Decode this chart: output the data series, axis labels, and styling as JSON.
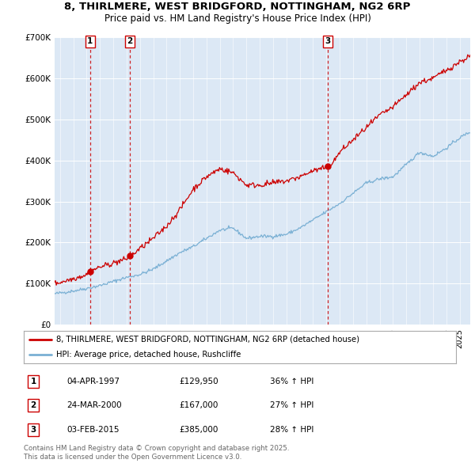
{
  "title1": "8, THIRLMERE, WEST BRIDGFORD, NOTTINGHAM, NG2 6RP",
  "title2": "Price paid vs. HM Land Registry's House Price Index (HPI)",
  "ylim": [
    0,
    700000
  ],
  "yticks": [
    0,
    100000,
    200000,
    300000,
    400000,
    500000,
    600000,
    700000
  ],
  "ytick_labels": [
    "£0",
    "£100K",
    "£200K",
    "£300K",
    "£400K",
    "£500K",
    "£600K",
    "£700K"
  ],
  "xlim_start": 1994.6,
  "xlim_end": 2025.8,
  "sales": [
    {
      "label": "1",
      "date": 1997.27,
      "price": 129950
    },
    {
      "label": "2",
      "date": 2000.23,
      "price": 167000
    },
    {
      "label": "3",
      "date": 2015.09,
      "price": 385000
    }
  ],
  "legend_line1": "8, THIRLMERE, WEST BRIDGFORD, NOTTINGHAM, NG2 6RP (detached house)",
  "legend_line2": "HPI: Average price, detached house, Rushcliffe",
  "table_rows": [
    {
      "num": "1",
      "date": "04-APR-1997",
      "price": "£129,950",
      "hpi": "36% ↑ HPI"
    },
    {
      "num": "2",
      "date": "24-MAR-2000",
      "price": "£167,000",
      "hpi": "27% ↑ HPI"
    },
    {
      "num": "3",
      "date": "03-FEB-2015",
      "price": "£385,000",
      "hpi": "28% ↑ HPI"
    }
  ],
  "footer": "Contains HM Land Registry data © Crown copyright and database right 2025.\nThis data is licensed under the Open Government Licence v3.0.",
  "bg_color": "#dce8f5",
  "red_color": "#cc0000",
  "blue_color": "#7ab0d4",
  "title_fontsize": 9.5,
  "subtitle_fontsize": 8.5
}
